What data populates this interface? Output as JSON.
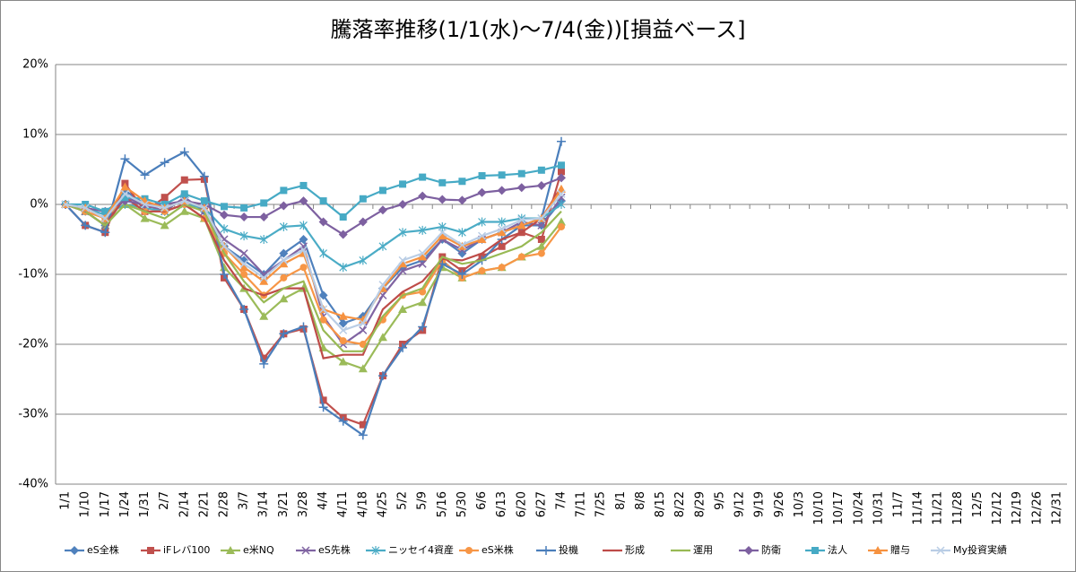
{
  "chart_data": {
    "type": "line",
    "title": "騰落率推移(1/1(水)～7/4(金))[損益ベース]",
    "categories": [
      "1/1",
      "1/10",
      "1/17",
      "1/24",
      "1/31",
      "2/7",
      "2/14",
      "2/21",
      "2/28",
      "3/7",
      "3/14",
      "3/21",
      "3/28",
      "4/4",
      "4/11",
      "4/18",
      "4/25",
      "5/2",
      "5/9",
      "5/16",
      "5/30",
      "6/6",
      "6/13",
      "6/20",
      "6/27",
      "7/4",
      "7/11",
      "7/25",
      "8/1",
      "8/8",
      "8/15",
      "8/22",
      "8/29",
      "9/5",
      "9/12",
      "9/19",
      "9/26",
      "10/3",
      "10/10",
      "10/17",
      "10/24",
      "10/31",
      "11/7",
      "11/14",
      "11/21",
      "11/28",
      "12/5",
      "12/12",
      "12/19",
      "12/26",
      "12/31"
    ],
    "ylim": [
      -40,
      20
    ],
    "yticks": [
      {
        "value": -40,
        "label": "-40%"
      },
      {
        "value": -30,
        "label": "-30%"
      },
      {
        "value": -20,
        "label": "-20%"
      },
      {
        "value": -10,
        "label": "-10%"
      },
      {
        "value": 0,
        "label": "0%"
      },
      {
        "value": 10,
        "label": "10%"
      },
      {
        "value": 20,
        "label": "20%"
      }
    ],
    "grid": true,
    "legend": "bottom",
    "series": [
      {
        "name": "eS全株",
        "color": "#4F81BD",
        "marker": "diamond",
        "values": [
          0,
          -1,
          -3,
          2,
          0,
          -1,
          1,
          -1,
          -6,
          -8,
          -10,
          -7,
          -5,
          -13,
          -17,
          -16,
          -12,
          -9,
          -8,
          -5,
          -7,
          -5,
          -4,
          -3,
          -3,
          0.5,
          null,
          null,
          null,
          null,
          null,
          null,
          null,
          null,
          null,
          null,
          null,
          null,
          null,
          null,
          null,
          null,
          null,
          null,
          null,
          null,
          null,
          null,
          null,
          null,
          null
        ]
      },
      {
        "name": "iFレバ100",
        "color": "#C0504D",
        "marker": "square",
        "values": [
          0,
          -3,
          -4,
          3,
          -1,
          1,
          3.5,
          3.6,
          -10.5,
          -15,
          -22,
          -18.5,
          -17.8,
          -28,
          -30.5,
          -31.5,
          -24.5,
          -20,
          -18,
          -7.5,
          -9.5,
          -7.5,
          -6,
          -4,
          -5,
          4.7,
          null,
          null,
          null,
          null,
          null,
          null,
          null,
          null,
          null,
          null,
          null,
          null,
          null,
          null,
          null,
          null,
          null,
          null,
          null,
          null,
          null,
          null,
          null,
          null,
          null
        ]
      },
      {
        "name": "e米NQ",
        "color": "#9BBB59",
        "marker": "triangle",
        "values": [
          0,
          -1,
          -3,
          0,
          -2,
          -3,
          -1,
          -2,
          -9,
          -12,
          -16,
          -13.5,
          -12,
          -20.5,
          -22.5,
          -23.5,
          -19,
          -15,
          -14,
          -9,
          -10.5,
          -9.5,
          -9,
          -7.5,
          -6,
          -2.5,
          null,
          null,
          null,
          null,
          null,
          null,
          null,
          null,
          null,
          null,
          null,
          null,
          null,
          null,
          null,
          null,
          null,
          null,
          null,
          null,
          null,
          null,
          null,
          null,
          null
        ]
      },
      {
        "name": "eS先株",
        "color": "#8064A2",
        "marker": "x",
        "values": [
          0,
          -1,
          -3,
          1,
          0,
          -1,
          1,
          -1,
          -5,
          -7,
          -10,
          -8,
          -6,
          -16,
          -20,
          -18,
          -13,
          -9.5,
          -8.5,
          -5,
          -6.5,
          -5,
          -4,
          -2.5,
          -3,
          1,
          null,
          null,
          null,
          null,
          null,
          null,
          null,
          null,
          null,
          null,
          null,
          null,
          null,
          null,
          null,
          null,
          null,
          null,
          null,
          null,
          null,
          null,
          null,
          null,
          null
        ]
      },
      {
        "name": "ニッセイ4資産",
        "color": "#4BACC6",
        "marker": "star",
        "values": [
          0,
          -0.5,
          -1.5,
          0,
          -0.5,
          -1,
          0,
          -0.5,
          -3.5,
          -4.5,
          -5,
          -3.2,
          -3,
          -7,
          -9,
          -8,
          -6,
          -4,
          -3.7,
          -3.2,
          -4,
          -2.5,
          -2.5,
          -2,
          -2,
          0,
          null,
          null,
          null,
          null,
          null,
          null,
          null,
          null,
          null,
          null,
          null,
          null,
          null,
          null,
          null,
          null,
          null,
          null,
          null,
          null,
          null,
          null,
          null,
          null,
          null
        ]
      },
      {
        "name": "eS米株",
        "color": "#F79646",
        "marker": "circle",
        "values": [
          0,
          -1,
          -2,
          1,
          -1,
          -1,
          0,
          -2,
          -7,
          -10,
          -13,
          -10.5,
          -9,
          -16.5,
          -19.5,
          -20,
          -16.5,
          -13,
          -12.5,
          -8,
          -10.5,
          -9.5,
          -9,
          -7.5,
          -7,
          -3.2,
          null,
          null,
          null,
          null,
          null,
          null,
          null,
          null,
          null,
          null,
          null,
          null,
          null,
          null,
          null,
          null,
          null,
          null,
          null,
          null,
          null,
          null,
          null,
          null,
          null
        ]
      },
      {
        "name": "投機",
        "color": "#4A7EBB",
        "marker": "plus",
        "values": [
          0,
          -3,
          -4,
          6.5,
          4.2,
          6,
          7.5,
          4,
          -10,
          -15,
          -22.8,
          -18.5,
          -17.5,
          -29,
          -31,
          -33,
          -24.5,
          -20.5,
          -17.5,
          -8.5,
          -10,
          -8,
          -5,
          -3,
          -2,
          9,
          null,
          null,
          null,
          null,
          null,
          null,
          null,
          null,
          null,
          null,
          null,
          null,
          null,
          null,
          null,
          null,
          null,
          null,
          null,
          null,
          null,
          null,
          null,
          null,
          null
        ]
      },
      {
        "name": "形成",
        "color": "#BE4B48",
        "marker": "none",
        "values": [
          0,
          -1,
          -3,
          1,
          -1,
          -1,
          0,
          -2,
          -8,
          -12,
          -13,
          -12,
          -12,
          -22,
          -21.5,
          -21.5,
          -15,
          -12.5,
          -11,
          -7.8,
          -8,
          -7,
          -5,
          -4,
          -2,
          2.5,
          null,
          null,
          null,
          null,
          null,
          null,
          null,
          null,
          null,
          null,
          null,
          null,
          null,
          null,
          null,
          null,
          null,
          null,
          null,
          null,
          null,
          null,
          null,
          null,
          null
        ]
      },
      {
        "name": "運用",
        "color": "#98B954",
        "marker": "none",
        "values": [
          0,
          -1,
          -3,
          0,
          -1,
          -2,
          0,
          -1,
          -7,
          -11,
          -14,
          -12,
          -11,
          -18,
          -21,
          -21,
          -16,
          -13,
          -12,
          -7.5,
          -8.5,
          -8,
          -7,
          -6,
          -4,
          -1,
          null,
          null,
          null,
          null,
          null,
          null,
          null,
          null,
          null,
          null,
          null,
          null,
          null,
          null,
          null,
          null,
          null,
          null,
          null,
          null,
          null,
          null,
          null,
          null,
          null
        ]
      },
      {
        "name": "防衛",
        "color": "#7D60A0",
        "marker": "diamond",
        "values": [
          0,
          -0.5,
          -1,
          0.5,
          0,
          0,
          0.5,
          0,
          -1.5,
          -1.8,
          -1.8,
          -0.2,
          0.5,
          -2.5,
          -4.3,
          -2.5,
          -0.8,
          0,
          1.2,
          0.7,
          0.6,
          1.7,
          2,
          2.4,
          2.7,
          3.8,
          null,
          null,
          null,
          null,
          null,
          null,
          null,
          null,
          null,
          null,
          null,
          null,
          null,
          null,
          null,
          null,
          null,
          null,
          null,
          null,
          null,
          null,
          null,
          null,
          null
        ]
      },
      {
        "name": "法人",
        "color": "#46AAC5",
        "marker": "square",
        "values": [
          0,
          0,
          -1,
          1,
          0.8,
          0,
          1.5,
          0.5,
          -0.3,
          -0.5,
          0.2,
          2,
          2.7,
          0.5,
          -1.8,
          0.8,
          2,
          2.9,
          3.9,
          3.1,
          3.3,
          4.1,
          4.2,
          4.4,
          4.9,
          5.6,
          null,
          null,
          null,
          null,
          null,
          null,
          null,
          null,
          null,
          null,
          null,
          null,
          null,
          null,
          null,
          null,
          null,
          null,
          null,
          null,
          null,
          null,
          null,
          null,
          null
        ]
      },
      {
        "name": "贈与",
        "color": "#F69240",
        "marker": "triangle",
        "values": [
          0,
          -0.5,
          -2,
          2.5,
          0.5,
          -0.5,
          0.5,
          -0.5,
          -6,
          -9,
          -11,
          -8.5,
          -7,
          -15,
          -16,
          -16.5,
          -12,
          -8.5,
          -7.5,
          -4.5,
          -6,
          -5,
          -4,
          -3,
          -2,
          2.2,
          null,
          null,
          null,
          null,
          null,
          null,
          null,
          null,
          null,
          null,
          null,
          null,
          null,
          null,
          null,
          null,
          null,
          null,
          null,
          null,
          null,
          null,
          null,
          null,
          null
        ]
      },
      {
        "name": "My投資実績",
        "color": "#B9CDE5",
        "marker": "x",
        "values": [
          0,
          -0.5,
          -2,
          1.5,
          0,
          -0.5,
          0.5,
          -0.5,
          -6,
          -8.5,
          -10.5,
          -8,
          -6.5,
          -15,
          -18,
          -17,
          -11.5,
          -8,
          -7,
          -4,
          -5.8,
          -4.5,
          -3.5,
          -2.2,
          -2,
          1.5,
          null,
          null,
          null,
          null,
          null,
          null,
          null,
          null,
          null,
          null,
          null,
          null,
          null,
          null,
          null,
          null,
          null,
          null,
          null,
          null,
          null,
          null,
          null,
          null,
          null
        ]
      }
    ]
  }
}
